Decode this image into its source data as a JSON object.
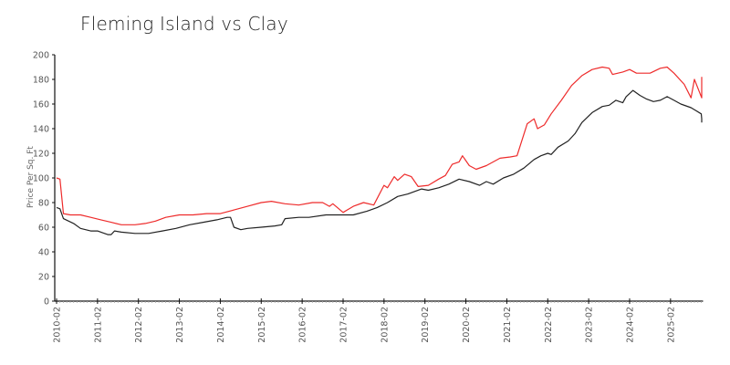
{
  "chart_data": {
    "type": "line",
    "title": "Fleming Island vs Clay",
    "xlabel": "",
    "ylabel": "Price Per Sq. Ft",
    "ylim": [
      0,
      200
    ],
    "yticks": [
      0,
      20,
      40,
      60,
      80,
      100,
      120,
      140,
      160,
      180,
      200
    ],
    "xticks": [
      "2010-02",
      "2011-02",
      "2012-02",
      "2013-02",
      "2014-02",
      "2015-02",
      "2016-02",
      "2017-02",
      "2018-02",
      "2019-02",
      "2020-02",
      "2021-02",
      "2022-02",
      "2023-02",
      "2024-02",
      "2025-02"
    ],
    "x_range": [
      "2010-02",
      "2025-11"
    ],
    "grid": false,
    "legend": "none",
    "series": [
      {
        "name": "Fleming Island",
        "color": "#ee2b2b",
        "points": [
          [
            "2010-02",
            100
          ],
          [
            "2010-03",
            99
          ],
          [
            "2010-04",
            71
          ],
          [
            "2010-06",
            70
          ],
          [
            "2010-09",
            70
          ],
          [
            "2010-12",
            68
          ],
          [
            "2011-03",
            66
          ],
          [
            "2011-06",
            64
          ],
          [
            "2011-09",
            62
          ],
          [
            "2012-01",
            62
          ],
          [
            "2012-04",
            63
          ],
          [
            "2012-07",
            65
          ],
          [
            "2012-10",
            68
          ],
          [
            "2013-02",
            70
          ],
          [
            "2013-06",
            70
          ],
          [
            "2013-10",
            71
          ],
          [
            "2014-02",
            71
          ],
          [
            "2014-06",
            74
          ],
          [
            "2014-10",
            77
          ],
          [
            "2015-02",
            80
          ],
          [
            "2015-05",
            81
          ],
          [
            "2015-09",
            79
          ],
          [
            "2016-01",
            78
          ],
          [
            "2016-05",
            80
          ],
          [
            "2016-08",
            80
          ],
          [
            "2016-10",
            77
          ],
          [
            "2016-11",
            79
          ],
          [
            "2017-02",
            72
          ],
          [
            "2017-05",
            77
          ],
          [
            "2017-08",
            80
          ],
          [
            "2017-11",
            78
          ],
          [
            "2018-02",
            94
          ],
          [
            "2018-03",
            92
          ],
          [
            "2018-05",
            101
          ],
          [
            "2018-06",
            98
          ],
          [
            "2018-08",
            103
          ],
          [
            "2018-10",
            101
          ],
          [
            "2018-12",
            93
          ],
          [
            "2019-03",
            94
          ],
          [
            "2019-06",
            99
          ],
          [
            "2019-08",
            102
          ],
          [
            "2019-10",
            111
          ],
          [
            "2019-12",
            113
          ],
          [
            "2020-01",
            118
          ],
          [
            "2020-03",
            110
          ],
          [
            "2020-05",
            107
          ],
          [
            "2020-08",
            110
          ],
          [
            "2020-12",
            116
          ],
          [
            "2021-03",
            117
          ],
          [
            "2021-05",
            118
          ],
          [
            "2021-08",
            144
          ],
          [
            "2021-10",
            148
          ],
          [
            "2021-11",
            140
          ],
          [
            "2022-01",
            143
          ],
          [
            "2022-03",
            152
          ],
          [
            "2022-06",
            163
          ],
          [
            "2022-09",
            175
          ],
          [
            "2022-12",
            183
          ],
          [
            "2023-03",
            188
          ],
          [
            "2023-06",
            190
          ],
          [
            "2023-08",
            189
          ],
          [
            "2023-09",
            184
          ],
          [
            "2023-12",
            186
          ],
          [
            "2024-02",
            188
          ],
          [
            "2024-04",
            185
          ],
          [
            "2024-08",
            185
          ],
          [
            "2024-11",
            189
          ],
          [
            "2025-01",
            190
          ],
          [
            "2025-03",
            185
          ],
          [
            "2025-06",
            176
          ],
          [
            "2025-08",
            165
          ],
          [
            "2025-09",
            180
          ],
          [
            "2025-12",
            165
          ],
          [
            "2026-01",
            176
          ],
          [
            "2026-02",
            174
          ],
          [
            "2026-03",
            182
          ]
        ]
      },
      {
        "name": "Clay",
        "color": "#222222",
        "points": [
          [
            "2010-02",
            76
          ],
          [
            "2010-03",
            75
          ],
          [
            "2010-04",
            67
          ],
          [
            "2010-07",
            63
          ],
          [
            "2010-09",
            59
          ],
          [
            "2010-12",
            57
          ],
          [
            "2011-02",
            57
          ],
          [
            "2011-05",
            54
          ],
          [
            "2011-06",
            54
          ],
          [
            "2011-07",
            57
          ],
          [
            "2011-09",
            56
          ],
          [
            "2012-01",
            55
          ],
          [
            "2012-05",
            55
          ],
          [
            "2012-09",
            57
          ],
          [
            "2013-01",
            59
          ],
          [
            "2013-05",
            62
          ],
          [
            "2013-09",
            64
          ],
          [
            "2014-01",
            66
          ],
          [
            "2014-04",
            68
          ],
          [
            "2014-05",
            68
          ],
          [
            "2014-06",
            60
          ],
          [
            "2014-08",
            58
          ],
          [
            "2014-10",
            59
          ],
          [
            "2015-02",
            60
          ],
          [
            "2015-06",
            61
          ],
          [
            "2015-08",
            62
          ],
          [
            "2015-09",
            67
          ],
          [
            "2016-01",
            68
          ],
          [
            "2016-04",
            68
          ],
          [
            "2016-09",
            70
          ],
          [
            "2017-01",
            70
          ],
          [
            "2017-05",
            70
          ],
          [
            "2017-09",
            73
          ],
          [
            "2017-12",
            76
          ],
          [
            "2018-03",
            80
          ],
          [
            "2018-06",
            85
          ],
          [
            "2018-09",
            87
          ],
          [
            "2018-11",
            89
          ],
          [
            "2019-01",
            91
          ],
          [
            "2019-03",
            90
          ],
          [
            "2019-06",
            92
          ],
          [
            "2019-09",
            95
          ],
          [
            "2019-12",
            99
          ],
          [
            "2020-03",
            97
          ],
          [
            "2020-06",
            94
          ],
          [
            "2020-08",
            97
          ],
          [
            "2020-10",
            95
          ],
          [
            "2021-01",
            100
          ],
          [
            "2021-04",
            103
          ],
          [
            "2021-07",
            108
          ],
          [
            "2021-10",
            115
          ],
          [
            "2021-12",
            118
          ],
          [
            "2022-02",
            120
          ],
          [
            "2022-03",
            119
          ],
          [
            "2022-05",
            125
          ],
          [
            "2022-08",
            130
          ],
          [
            "2022-10",
            136
          ],
          [
            "2022-12",
            145
          ],
          [
            "2023-03",
            153
          ],
          [
            "2023-06",
            158
          ],
          [
            "2023-08",
            159
          ],
          [
            "2023-10",
            163
          ],
          [
            "2023-12",
            161
          ],
          [
            "2024-01",
            166
          ],
          [
            "2024-03",
            171
          ],
          [
            "2024-05",
            167
          ],
          [
            "2024-07",
            164
          ],
          [
            "2024-09",
            162
          ],
          [
            "2024-11",
            163
          ],
          [
            "2025-01",
            166
          ],
          [
            "2025-03",
            163
          ],
          [
            "2025-05",
            160
          ],
          [
            "2025-08",
            157
          ],
          [
            "2025-11",
            152
          ],
          [
            "2026-02",
            148
          ],
          [
            "2026-04",
            146
          ],
          [
            "2026-05",
            147
          ],
          [
            "2026-06",
            145
          ],
          [
            "2026-07",
            145
          ]
        ]
      }
    ]
  }
}
